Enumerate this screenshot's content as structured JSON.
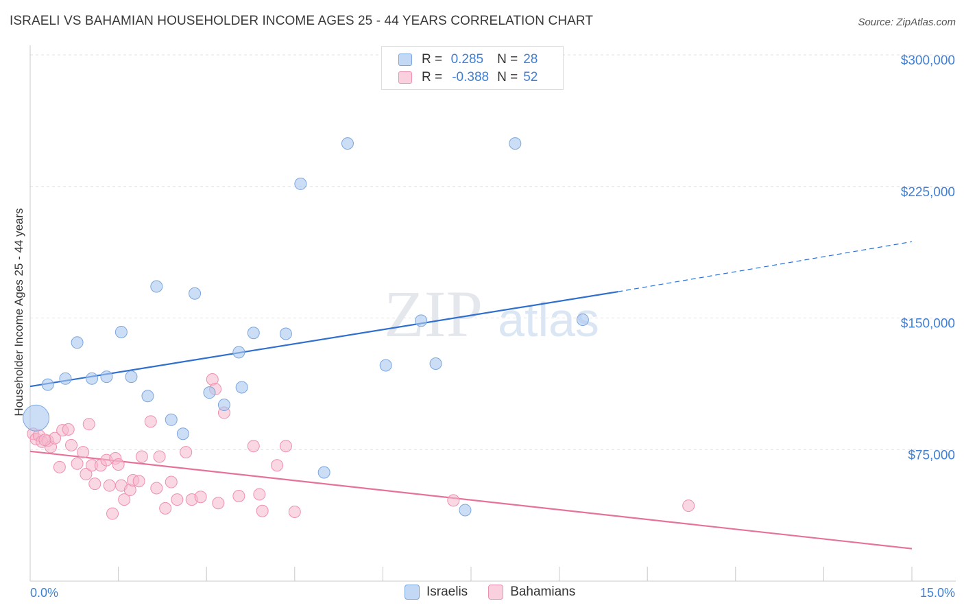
{
  "title": "ISRAELI VS BAHAMIAN HOUSEHOLDER INCOME AGES 25 - 44 YEARS CORRELATION CHART",
  "source": "Source: ZipAtlas.com",
  "watermark": {
    "zip": "ZIP",
    "atlas": "atlas"
  },
  "colors": {
    "israelis_fill": "#aac8f0",
    "israelis_stroke": "#7aa6dd",
    "israelis_line": "#2f6fce",
    "bahamians_fill": "#f6b8cc",
    "bahamians_stroke": "#ee8fae",
    "bahamians_line": "#e6729c",
    "tick_label": "#3f7fd4",
    "grid": "#dde3ea"
  },
  "legend": {
    "rows": [
      {
        "r_label": "R =",
        "r_value": "0.285",
        "n_label": "N =",
        "n_value": "28"
      },
      {
        "r_label": "R =",
        "r_value": "-0.388",
        "n_label": "N =",
        "n_value": "52"
      }
    ]
  },
  "bottom_legend": [
    "Israelis",
    "Bahamians"
  ],
  "chart_data": {
    "type": "scatter",
    "title": "ISRAELI VS BAHAMIAN HOUSEHOLDER INCOME AGES 25 - 44 YEARS CORRELATION CHART",
    "xlabel": "",
    "ylabel": "Householder Income Ages 25 - 44 years",
    "x_unit": "%",
    "xlim": [
      0,
      15
    ],
    "ylim": [
      0,
      300000
    ],
    "x_tick_labels": [
      "0.0%",
      "15.0%"
    ],
    "y_ticks": [
      75000,
      150000,
      225000,
      300000
    ],
    "y_tick_labels": [
      "$75,000",
      "$150,000",
      "$225,000",
      "$300,000"
    ],
    "grid": true,
    "legend_position": "top-center",
    "series": [
      {
        "name": "Israelis",
        "R": 0.285,
        "N": 28,
        "trend": {
          "x": [
            0,
            10.0
          ],
          "y": [
            111000,
            165000
          ],
          "dashed_to": {
            "x": 15,
            "y": 193500
          }
        },
        "points": [
          {
            "x": 0.1,
            "y": 93000,
            "big": true
          },
          {
            "x": 0.3,
            "y": 112000
          },
          {
            "x": 0.6,
            "y": 115500
          },
          {
            "x": 0.8,
            "y": 136000
          },
          {
            "x": 1.05,
            "y": 115500
          },
          {
            "x": 1.3,
            "y": 116500
          },
          {
            "x": 1.55,
            "y": 142000
          },
          {
            "x": 1.72,
            "y": 116500
          },
          {
            "x": 2.0,
            "y": 105500
          },
          {
            "x": 2.15,
            "y": 168000
          },
          {
            "x": 2.4,
            "y": 92000
          },
          {
            "x": 2.6,
            "y": 84000
          },
          {
            "x": 2.8,
            "y": 164000
          },
          {
            "x": 3.05,
            "y": 107500
          },
          {
            "x": 3.3,
            "y": 100500
          },
          {
            "x": 3.55,
            "y": 130500
          },
          {
            "x": 3.6,
            "y": 110500
          },
          {
            "x": 3.8,
            "y": 141500
          },
          {
            "x": 4.35,
            "y": 141000
          },
          {
            "x": 4.6,
            "y": 226500
          },
          {
            "x": 5.0,
            "y": 62000
          },
          {
            "x": 5.4,
            "y": 249500
          },
          {
            "x": 6.05,
            "y": 123000
          },
          {
            "x": 6.65,
            "y": 148500
          },
          {
            "x": 6.9,
            "y": 124000
          },
          {
            "x": 7.4,
            "y": 40500
          },
          {
            "x": 8.25,
            "y": 249500
          },
          {
            "x": 9.4,
            "y": 149000
          }
        ]
      },
      {
        "name": "Bahamians",
        "R": -0.388,
        "N": 52,
        "trend": {
          "x": [
            0,
            15
          ],
          "y": [
            74000,
            18500
          ]
        },
        "points": [
          {
            "x": 0.05,
            "y": 84000
          },
          {
            "x": 0.1,
            "y": 81000
          },
          {
            "x": 0.15,
            "y": 83000
          },
          {
            "x": 0.2,
            "y": 79500
          },
          {
            "x": 0.3,
            "y": 80000
          },
          {
            "x": 0.35,
            "y": 76500
          },
          {
            "x": 0.42,
            "y": 81500
          },
          {
            "x": 0.5,
            "y": 65000
          },
          {
            "x": 0.55,
            "y": 86000
          },
          {
            "x": 0.65,
            "y": 86500
          },
          {
            "x": 0.7,
            "y": 77500
          },
          {
            "x": 0.8,
            "y": 67000
          },
          {
            "x": 0.9,
            "y": 73500
          },
          {
            "x": 0.95,
            "y": 61000
          },
          {
            "x": 1.0,
            "y": 89500
          },
          {
            "x": 1.05,
            "y": 66000
          },
          {
            "x": 1.1,
            "y": 55500
          },
          {
            "x": 1.2,
            "y": 66000
          },
          {
            "x": 1.3,
            "y": 69000
          },
          {
            "x": 1.35,
            "y": 54500
          },
          {
            "x": 1.4,
            "y": 38500
          },
          {
            "x": 1.45,
            "y": 70000
          },
          {
            "x": 1.5,
            "y": 66500
          },
          {
            "x": 1.55,
            "y": 54500
          },
          {
            "x": 1.6,
            "y": 46500
          },
          {
            "x": 1.7,
            "y": 52000
          },
          {
            "x": 1.75,
            "y": 57500
          },
          {
            "x": 1.85,
            "y": 57000
          },
          {
            "x": 1.9,
            "y": 71000
          },
          {
            "x": 2.05,
            "y": 91000
          },
          {
            "x": 2.15,
            "y": 53000
          },
          {
            "x": 2.2,
            "y": 71000
          },
          {
            "x": 2.3,
            "y": 41500
          },
          {
            "x": 2.4,
            "y": 56500
          },
          {
            "x": 2.5,
            "y": 46500
          },
          {
            "x": 2.65,
            "y": 73500
          },
          {
            "x": 2.75,
            "y": 46500
          },
          {
            "x": 2.9,
            "y": 48000
          },
          {
            "x": 3.1,
            "y": 115000
          },
          {
            "x": 3.15,
            "y": 109500
          },
          {
            "x": 3.2,
            "y": 44500
          },
          {
            "x": 3.3,
            "y": 96000
          },
          {
            "x": 3.55,
            "y": 48500
          },
          {
            "x": 3.8,
            "y": 77000
          },
          {
            "x": 3.9,
            "y": 49500
          },
          {
            "x": 3.95,
            "y": 40000
          },
          {
            "x": 4.2,
            "y": 66000
          },
          {
            "x": 4.35,
            "y": 77000
          },
          {
            "x": 4.5,
            "y": 39500
          },
          {
            "x": 7.2,
            "y": 46000
          },
          {
            "x": 11.2,
            "y": 43000
          },
          {
            "x": 0.25,
            "y": 80500
          }
        ]
      }
    ]
  }
}
